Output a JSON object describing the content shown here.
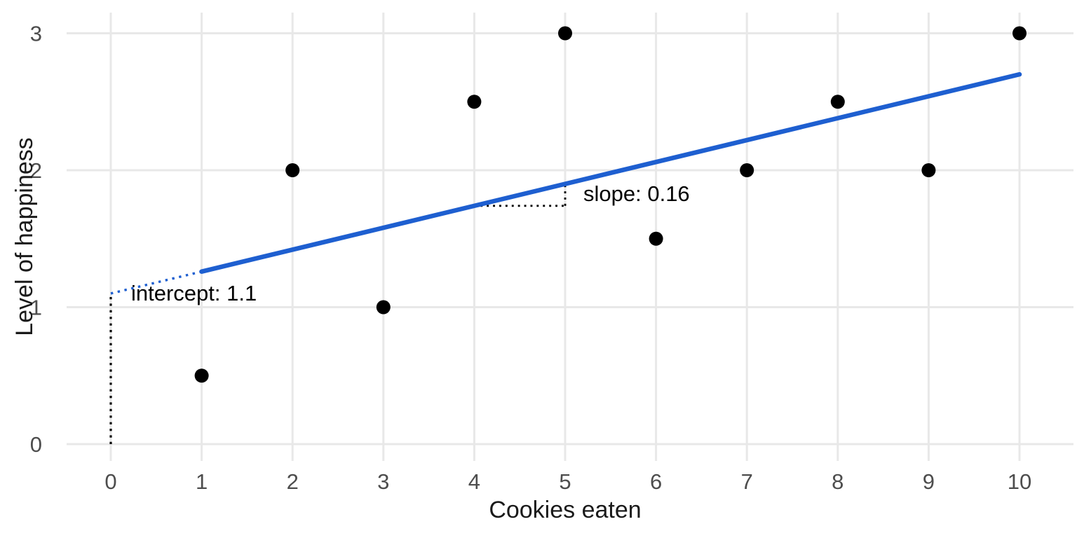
{
  "chart_data": {
    "type": "scatter",
    "title": "",
    "xlabel": "Cookies eaten",
    "ylabel": "Level of happiness",
    "x": [
      1,
      2,
      3,
      4,
      5,
      6,
      7,
      8,
      9,
      10
    ],
    "y": [
      0.5,
      2,
      1,
      2.5,
      3,
      1.5,
      2,
      2.5,
      2,
      3
    ],
    "x_ticks": [
      0,
      1,
      2,
      3,
      4,
      5,
      6,
      7,
      8,
      9,
      10
    ],
    "y_ticks": [
      0,
      1,
      2,
      3
    ],
    "xlim": [
      -0.49,
      10.6
    ],
    "ylim": [
      -0.12,
      3.15
    ],
    "grid": "major-only",
    "legend": "none",
    "regression": {
      "intercept": 1.1,
      "slope": 0.16,
      "solid_x_range": [
        1,
        10
      ],
      "dotted_x_range": [
        0,
        1
      ]
    },
    "annotations": [
      {
        "id": "intercept-label",
        "text": "intercept: 1.1",
        "x": 0.22,
        "y": 1.1,
        "anchor": "start"
      },
      {
        "id": "slope-label",
        "text": "slope: 0.16",
        "x": 5.2,
        "y": 1.83,
        "anchor": "start"
      }
    ],
    "guides": {
      "intercept_vline": {
        "x": 0,
        "y_from": 0,
        "y_to": 1.1
      },
      "slope_run": {
        "y": 1.74,
        "x_from": 4,
        "x_to": 5
      },
      "slope_rise": {
        "x": 5,
        "y_from": 1.74,
        "y_to": 1.9
      }
    },
    "colors": {
      "point": "#000000",
      "regression_line": "#1e5fd0",
      "grid_line": "#e8e8e8",
      "tick_label": "#4d4d4d",
      "axis_title": "#1a1a1a",
      "annotation_text": "#000000",
      "background": "#ffffff"
    }
  }
}
